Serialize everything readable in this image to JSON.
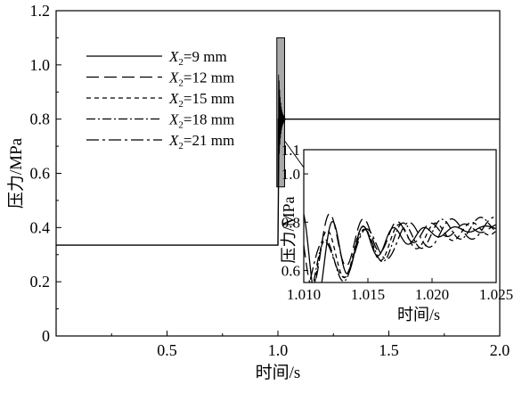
{
  "chart_data": [
    {
      "type": "line",
      "title": "",
      "xlabel": "时间/s",
      "ylabel": "压力/MPa",
      "xlim": [
        0,
        2.0
      ],
      "ylim": [
        0,
        1.2
      ],
      "xticks": [
        0.5,
        1.0,
        1.5,
        2.0
      ],
      "xtick_labels": [
        "0.5",
        "1.0",
        "1.5",
        "2.0"
      ],
      "yticks": [
        0,
        0.2,
        0.4,
        0.6,
        0.8,
        1.0,
        1.2
      ],
      "ytick_labels": [
        "0",
        "0.2",
        "0.4",
        "0.6",
        "0.8",
        "1.0",
        "1.2"
      ],
      "grid": false,
      "legend_position": "upper-left",
      "legend_entries": [
        {
          "prefix": "X",
          "sub": "2",
          "suffix": "=9 mm",
          "dash": "solid"
        },
        {
          "prefix": "X",
          "sub": "2",
          "suffix": "=12 mm",
          "dash": "long-dash"
        },
        {
          "prefix": "X",
          "sub": "2",
          "suffix": "=15 mm",
          "dash": "short-dash"
        },
        {
          "prefix": "X",
          "sub": "2",
          "suffix": "=18 mm",
          "dash": "dash-dot"
        },
        {
          "prefix": "X",
          "sub": "2",
          "suffix": "=21 mm",
          "dash": "dash-dot-long"
        }
      ],
      "main_curve": {
        "before_value": 0.335,
        "switch_time": 1.0,
        "after_value": 0.8,
        "end_time": 2.0
      },
      "highlight_window": {
        "x": [
          0.995,
          1.03
        ],
        "y": [
          0.55,
          1.1
        ]
      }
    },
    {
      "type": "line",
      "role": "inset",
      "xlabel": "时间/s",
      "ylabel": "压力/MPa",
      "xlim": [
        1.01,
        1.025
      ],
      "ylim": [
        0.55,
        1.1
      ],
      "xticks": [
        1.01,
        1.015,
        1.02,
        1.025
      ],
      "xtick_labels": [
        "1.010",
        "1.015",
        "1.020",
        "1.025"
      ],
      "yticks": [
        0.6,
        0.8,
        1.0
      ],
      "ytick_labels": [
        "0.6",
        "0.8",
        "1.0"
      ],
      "extra_ytick_labels": [
        {
          "value": 1.1,
          "label": "1.1"
        }
      ],
      "series": [
        {
          "x2_mm": 9,
          "dash": "solid",
          "start": 0.62,
          "end": 0.8,
          "amp0": 0.45,
          "decay": 230,
          "freq": 420,
          "phase": 1.9
        },
        {
          "x2_mm": 12,
          "dash": "long-dash",
          "start": 0.68,
          "end": 0.79,
          "amp0": 0.36,
          "decay": 170,
          "freq": 380,
          "phase": 3.0
        },
        {
          "x2_mm": 15,
          "dash": "short-dash",
          "start": 0.6,
          "end": 0.8,
          "amp0": 0.3,
          "decay": 120,
          "freq": 355,
          "phase": 3.8
        },
        {
          "x2_mm": 18,
          "dash": "dash-dot",
          "start": 0.56,
          "end": 0.82,
          "amp0": 0.26,
          "decay": 90,
          "freq": 330,
          "phase": 4.4
        },
        {
          "x2_mm": 21,
          "dash": "dash-dot-long",
          "start": 0.58,
          "end": 0.81,
          "amp0": 0.22,
          "decay": 70,
          "freq": 300,
          "phase": 5.0
        }
      ]
    }
  ]
}
